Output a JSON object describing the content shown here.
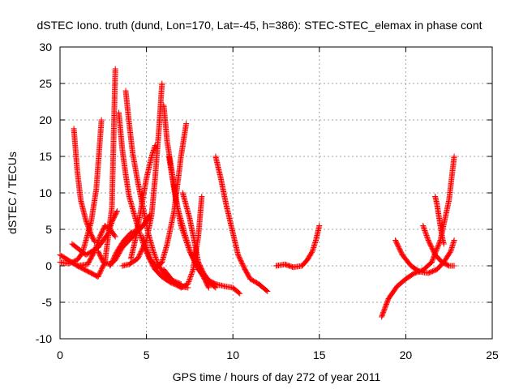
{
  "chart_data": {
    "type": "scatter",
    "title": "dSTEC Iono. truth (dund, Lon=170, Lat=-45, h=386): STEC-STEC_elemax in phase cont",
    "xlabel": "GPS time / hours of day 272 of year 2011",
    "ylabel": "dSTEC  / TECUs",
    "xlim": [
      0,
      25
    ],
    "ylim": [
      -10,
      30
    ],
    "xticks": [
      0,
      5,
      10,
      15,
      20,
      25
    ],
    "yticks": [
      -10,
      -5,
      0,
      5,
      10,
      15,
      20,
      25,
      30
    ],
    "grid": true,
    "marker": "+",
    "color": "#ff0000",
    "series": [
      {
        "x": [
          0.0,
          0.5,
          1.0,
          1.3,
          1.5,
          1.8,
          2.1,
          2.4
        ],
        "y": [
          0.5,
          0.3,
          0.8,
          1.8,
          3.5,
          6.0,
          10.5,
          20.0
        ]
      },
      {
        "x": [
          0.8,
          1.0,
          1.2,
          1.5,
          1.8,
          2.0
        ],
        "y": [
          18.8,
          13.0,
          9.0,
          6.2,
          4.3,
          3.3
        ]
      },
      {
        "x": [
          0.7,
          1.5,
          2.2,
          2.8,
          3.0,
          3.3
        ],
        "y": [
          3.0,
          1.5,
          2.5,
          4.5,
          6.0,
          7.5
        ]
      },
      {
        "x": [
          0.0,
          1.0,
          1.8,
          2.2,
          2.6,
          3.0,
          3.2
        ],
        "y": [
          1.5,
          0.0,
          -1.0,
          -1.5,
          0.5,
          8.0,
          27.0
        ]
      },
      {
        "x": [
          3.4,
          3.6,
          3.8,
          4.0,
          4.3,
          4.6,
          4.9,
          5.2,
          5.5,
          5.9,
          6.4,
          6.9,
          7.4
        ],
        "y": [
          21.0,
          16.0,
          12.5,
          9.5,
          7.0,
          4.5,
          2.5,
          0.8,
          -0.5,
          -1.5,
          -2.3,
          -2.8,
          -3.0
        ]
      },
      {
        "x": [
          1.0,
          1.6,
          2.0,
          2.3,
          2.6,
          2.9,
          3.2
        ],
        "y": [
          0.0,
          0.2,
          2.0,
          4.0,
          5.5,
          5.0,
          4.0
        ]
      },
      {
        "x": [
          3.8,
          4.0,
          4.2,
          4.5,
          4.8,
          5.1,
          5.4,
          5.7,
          6.0,
          6.5,
          7.0
        ],
        "y": [
          24.0,
          19.5,
          15.5,
          11.5,
          8.0,
          4.5,
          2.0,
          0.0,
          -1.0,
          -2.0,
          -2.5
        ]
      },
      {
        "x": [
          2.2,
          2.5,
          2.9,
          3.2,
          3.6,
          4.2,
          4.8,
          5.2
        ],
        "y": [
          2.0,
          0.5,
          0.2,
          0.8,
          2.5,
          4.0,
          5.5,
          7.0
        ]
      },
      {
        "x": [
          2.9,
          3.3,
          3.7,
          4.1,
          4.6,
          5.0,
          5.2
        ],
        "y": [
          0.0,
          2.0,
          3.5,
          4.5,
          5.0,
          6.0,
          7.0
        ]
      },
      {
        "x": [
          3.6,
          4.0,
          4.5,
          5.0,
          5.3,
          5.5,
          5.7,
          5.9
        ],
        "y": [
          0.0,
          0.2,
          1.0,
          3.5,
          7.0,
          12.0,
          18.0,
          25.0
        ]
      },
      {
        "x": [
          4.1,
          4.4,
          4.7,
          5.0,
          5.3,
          5.5
        ],
        "y": [
          1.0,
          4.0,
          8.0,
          12.0,
          15.0,
          16.5
        ]
      },
      {
        "x": [
          6.0,
          6.2,
          6.5,
          6.8,
          7.2,
          7.6,
          8.0,
          8.5,
          9.0
        ],
        "y": [
          22.0,
          17.0,
          12.5,
          8.0,
          4.5,
          1.5,
          -0.5,
          -2.0,
          -3.0
        ]
      },
      {
        "x": [
          4.8,
          5.2,
          5.6,
          5.9,
          6.2,
          6.6,
          7.0,
          7.3
        ],
        "y": [
          4.0,
          1.0,
          -0.3,
          0.5,
          3.0,
          7.5,
          15.0,
          19.5
        ]
      },
      {
        "x": [
          6.3,
          6.5,
          6.7,
          7.0,
          7.5,
          8.0,
          8.4,
          8.6
        ],
        "y": [
          15.0,
          12.0,
          9.0,
          5.5,
          2.0,
          -0.3,
          -2.0,
          -3.0
        ]
      },
      {
        "x": [
          6.0,
          6.5,
          7.0,
          7.4,
          7.7,
          8.0,
          8.2
        ],
        "y": [
          -0.5,
          -2.0,
          -3.0,
          -2.5,
          -0.5,
          4.0,
          9.5
        ]
      },
      {
        "x": [
          7.1,
          7.5,
          7.8,
          8.0,
          8.3,
          8.6,
          9.0,
          9.5,
          10.0,
          10.4
        ],
        "y": [
          10.0,
          6.5,
          3.0,
          0.5,
          -1.0,
          -2.0,
          -2.5,
          -2.8,
          -3.0,
          -3.8
        ]
      },
      {
        "x": [
          9.0,
          9.3,
          9.6,
          10.0,
          10.3,
          10.7,
          11.0,
          11.5,
          12.0
        ],
        "y": [
          15.0,
          12.0,
          8.5,
          4.5,
          1.5,
          -0.5,
          -1.8,
          -2.5,
          -3.5
        ]
      },
      {
        "x": [
          12.5,
          13.0,
          13.5,
          14.0,
          14.3,
          14.6,
          14.8,
          15.0
        ],
        "y": [
          0.0,
          0.2,
          -0.2,
          0.0,
          0.8,
          2.0,
          3.5,
          5.5
        ]
      },
      {
        "x": [
          18.6,
          19.0,
          19.5,
          20.0,
          20.5,
          21.0,
          21.5,
          22.0,
          22.5,
          22.8
        ],
        "y": [
          -7.0,
          -4.5,
          -2.8,
          -1.8,
          -1.0,
          -0.6,
          0.5,
          3.5,
          9.0,
          15.0
        ]
      },
      {
        "x": [
          19.4,
          19.8,
          20.3,
          20.8,
          21.3,
          21.8,
          22.2,
          22.6,
          22.8
        ],
        "y": [
          3.5,
          1.5,
          0.0,
          -0.8,
          -1.0,
          -0.5,
          0.5,
          2.0,
          3.5
        ]
      },
      {
        "x": [
          21.0,
          21.3,
          21.7,
          22.1,
          22.5,
          22.8
        ],
        "y": [
          5.5,
          3.5,
          1.5,
          0.5,
          0.0,
          0.0
        ]
      },
      {
        "x": [
          21.7,
          21.8,
          21.9,
          22.0,
          22.1,
          22.2
        ],
        "y": [
          9.5,
          8.5,
          7.0,
          5.5,
          4.0,
          3.0
        ]
      }
    ]
  }
}
